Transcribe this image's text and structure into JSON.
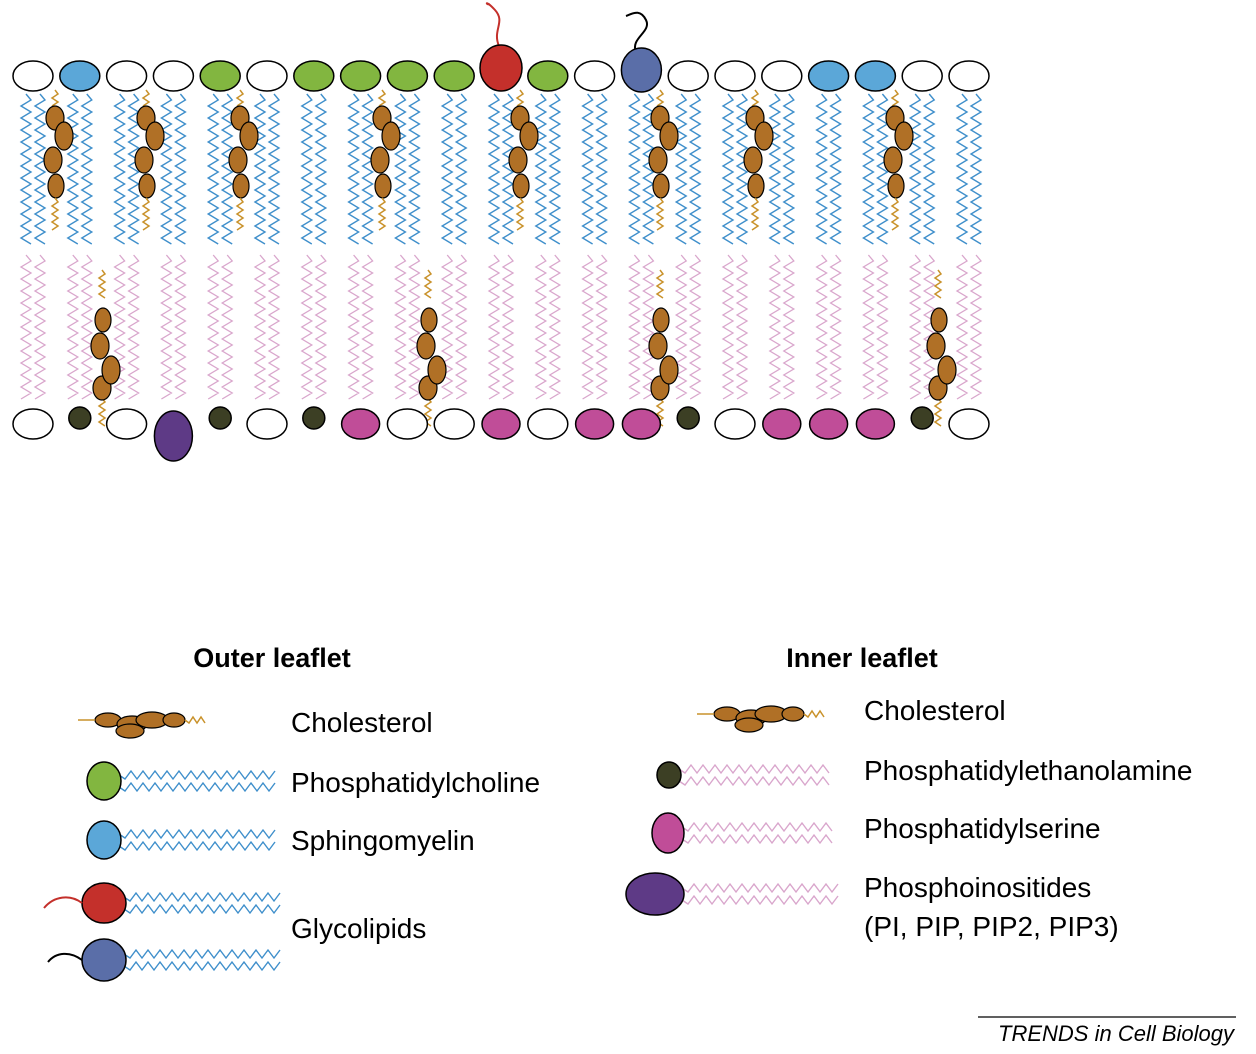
{
  "colors": {
    "white_head": "#ffffff",
    "sphingomyelin": "#5ba7d8",
    "phosphatidylcholine": "#82b640",
    "glycolipid_red": "#c4302b",
    "glycolipid_blue": "#5a6ea8",
    "cholesterol": "#b07026",
    "cholesterol_tail": "#c9922b",
    "pe": "#3c3f24",
    "ps": "#c04d98",
    "pi": "#5e3a86",
    "outer_tail": "#3f8fcb",
    "inner_tail": "#d9a6cc",
    "outline": "#000000"
  },
  "membrane": {
    "outer_leaflet": [
      "white",
      "sphingomyelin",
      "white",
      "white",
      "phosphatidylcholine",
      "white",
      "phosphatidylcholine",
      "phosphatidylcholine",
      "phosphatidylcholine",
      "phosphatidylcholine",
      "glycolipid_red",
      "phosphatidylcholine",
      "white",
      "glycolipid_blue",
      "white",
      "white",
      "white",
      "sphingomyelin",
      "sphingomyelin",
      "white",
      "white"
    ],
    "inner_leaflet": [
      "white",
      "pe",
      "white",
      "pi",
      "pe",
      "white",
      "pe",
      "ps",
      "white",
      "white",
      "ps",
      "white",
      "ps",
      "ps",
      "pe",
      "white",
      "ps",
      "ps",
      "ps",
      "pe",
      "white"
    ]
  },
  "legend": {
    "outer": {
      "heading": "Outer leaflet",
      "cholesterol": "Cholesterol",
      "phosphatidylcholine": "Phosphatidylcholine",
      "sphingomyelin": "Sphingomyelin",
      "glycolipids": "Glycolipids"
    },
    "inner": {
      "heading": "Inner leaflet",
      "cholesterol": "Cholesterol",
      "phosphatidylethanolamine": "Phosphatidylethanolamine",
      "phosphatidylserine": "Phosphatidylserine",
      "phosphoinositides_line1": "Phosphoinositides",
      "phosphoinositides_line2": "(PI, PIP, PIP2, PIP3)"
    }
  },
  "credit": "TRENDS in Cell Biology"
}
